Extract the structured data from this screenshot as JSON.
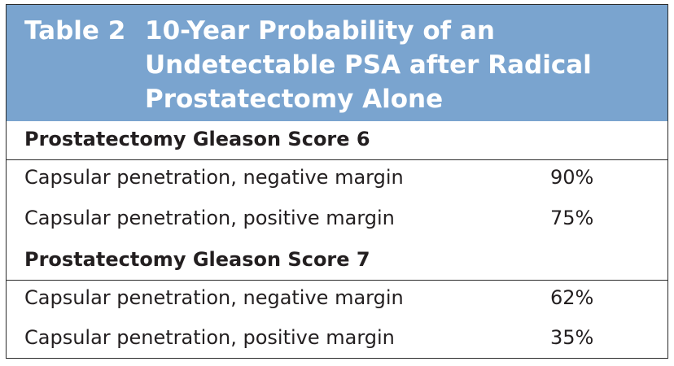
{
  "table": {
    "label": "Table 2",
    "title_lines": [
      "10-Year Probability of an",
      "Undetectable PSA after Radical",
      "Prostatectomy Alone"
    ],
    "header_color": "#7aa4cf",
    "sections": [
      {
        "heading": "Prostatectomy Gleason Score 6",
        "rows": [
          {
            "label": "Capsular penetration, negative margin",
            "value": "90%"
          },
          {
            "label": "Capsular penetration, positive margin",
            "value": "75%"
          }
        ]
      },
      {
        "heading": "Prostatectomy Gleason Score 7",
        "rows": [
          {
            "label": "Capsular penetration, negative margin",
            "value": "62%"
          },
          {
            "label": "Capsular penetration, positive margin",
            "value": "35%"
          }
        ]
      }
    ]
  }
}
